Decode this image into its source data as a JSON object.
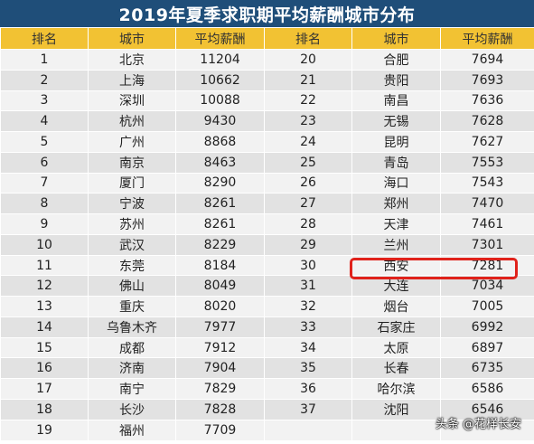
{
  "title": "2019年夏季求职期平均薪酬城市分布",
  "headers": [
    "排名",
    "城市",
    "平均薪酬",
    "排名",
    "城市",
    "平均薪酬"
  ],
  "rows": [
    [
      [
        "1",
        "北京",
        "11204"
      ],
      [
        "20",
        "合肥",
        "7694"
      ]
    ],
    [
      [
        "2",
        "上海",
        "10662"
      ],
      [
        "21",
        "贵阳",
        "7693"
      ]
    ],
    [
      [
        "3",
        "深圳",
        "10088"
      ],
      [
        "22",
        "南昌",
        "7636"
      ]
    ],
    [
      [
        "4",
        "杭州",
        "9430"
      ],
      [
        "23",
        "无锡",
        "7628"
      ]
    ],
    [
      [
        "5",
        "广州",
        "8868"
      ],
      [
        "24",
        "昆明",
        "7627"
      ]
    ],
    [
      [
        "6",
        "南京",
        "8463"
      ],
      [
        "25",
        "青岛",
        "7553"
      ]
    ],
    [
      [
        "7",
        "厦门",
        "8290"
      ],
      [
        "26",
        "海口",
        "7543"
      ]
    ],
    [
      [
        "8",
        "宁波",
        "8261"
      ],
      [
        "27",
        "郑州",
        "7470"
      ]
    ],
    [
      [
        "9",
        "苏州",
        "8261"
      ],
      [
        "28",
        "天津",
        "7461"
      ]
    ],
    [
      [
        "10",
        "武汉",
        "8229"
      ],
      [
        "29",
        "兰州",
        "7301"
      ]
    ],
    [
      [
        "11",
        "东莞",
        "8184"
      ],
      [
        "30",
        "西安",
        "7281"
      ]
    ],
    [
      [
        "12",
        "佛山",
        "8049"
      ],
      [
        "31",
        "大连",
        "7034"
      ]
    ],
    [
      [
        "13",
        "重庆",
        "8020"
      ],
      [
        "32",
        "烟台",
        "7005"
      ]
    ],
    [
      [
        "14",
        "乌鲁木齐",
        "7977"
      ],
      [
        "33",
        "石家庄",
        "6992"
      ]
    ],
    [
      [
        "15",
        "成都",
        "7912"
      ],
      [
        "34",
        "太原",
        "6897"
      ]
    ],
    [
      [
        "16",
        "济南",
        "7904"
      ],
      [
        "35",
        "长春",
        "6735"
      ]
    ],
    [
      [
        "17",
        "南宁",
        "7829"
      ],
      [
        "36",
        "哈尔滨",
        "6586"
      ]
    ],
    [
      [
        "18",
        "长沙",
        "7828"
      ],
      [
        "37",
        "沈阳",
        "6546"
      ]
    ],
    [
      [
        "19",
        "福州",
        "7709"
      ],
      [
        "",
        "",
        ""
      ]
    ]
  ],
  "highlighted_row": [
    "30",
    "西安",
    "7281"
  ],
  "watermark": "头条 @花样长安",
  "colors": {
    "title_bg": "#1f4e79",
    "header_bg": "#f2c233",
    "row_light": "#f2f2f2",
    "row_dark": "#e2e2e2",
    "highlight": "#e0221b"
  }
}
